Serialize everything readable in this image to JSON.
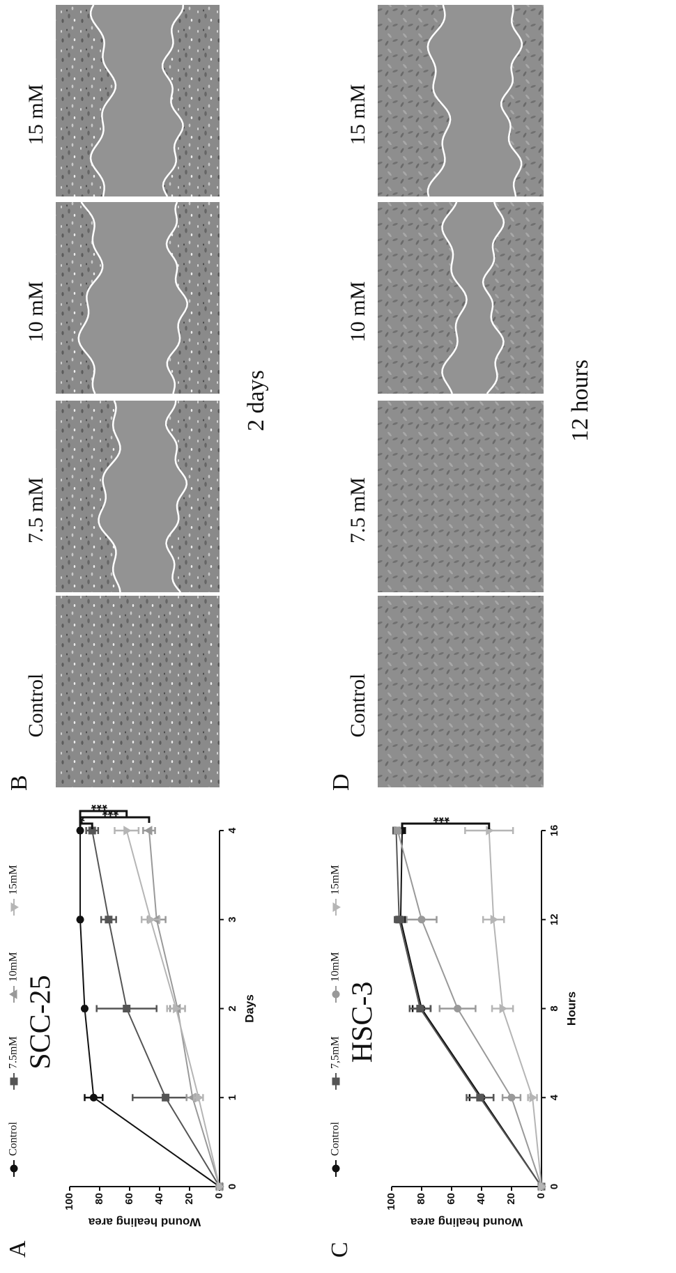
{
  "chart_data": [
    {
      "type": "line",
      "panel_label": "A",
      "title": "SCC-25",
      "x_label": "Days",
      "y_label": "Wound healing area",
      "x": [
        0,
        1,
        2,
        3,
        4
      ],
      "xlim": [
        0,
        4
      ],
      "xticks": [
        0,
        1,
        2,
        3,
        4
      ],
      "ylim": [
        0,
        100
      ],
      "yticks": [
        0,
        20,
        40,
        60,
        80,
        100
      ],
      "series": [
        {
          "name": "Control",
          "color": "#111111",
          "marker": "circle",
          "values": [
            0,
            84,
            90,
            93,
            93
          ],
          "errors": [
            0,
            6,
            1,
            1,
            1
          ]
        },
        {
          "name": "7.5mM",
          "color": "#555555",
          "marker": "square",
          "values": [
            0,
            36,
            62,
            74,
            85
          ],
          "errors": [
            0,
            22,
            20,
            5,
            4
          ]
        },
        {
          "name": "10mM",
          "color": "#999999",
          "marker": "triangle",
          "values": [
            0,
            18,
            28,
            42,
            47
          ],
          "errors": [
            0,
            4,
            5,
            6,
            4
          ]
        },
        {
          "name": "15mM",
          "color": "#b5b5b5",
          "marker": "triangle-down",
          "values": [
            0,
            14,
            29,
            46,
            62
          ],
          "errors": [
            0,
            3,
            6,
            6,
            8
          ]
        }
      ],
      "annotations": [
        "*",
        "***",
        "***"
      ]
    },
    {
      "type": "line",
      "panel_label": "C",
      "title": "HSC-3",
      "x_label": "Hours",
      "y_label": "Wound healing area",
      "x": [
        0,
        4,
        8,
        12,
        16
      ],
      "xlim": [
        0,
        16
      ],
      "xticks": [
        0,
        4,
        8,
        12,
        16
      ],
      "ylim": [
        0,
        100
      ],
      "yticks": [
        0,
        20,
        40,
        60,
        80,
        100
      ],
      "series": [
        {
          "name": "Control",
          "color": "#111111",
          "marker": "circle",
          "values": [
            0,
            40,
            80,
            94,
            93
          ],
          "errors": [
            0,
            8,
            6,
            3,
            2
          ]
        },
        {
          "name": "7,5mM",
          "color": "#555555",
          "marker": "square",
          "values": [
            0,
            41,
            81,
            95,
            97
          ],
          "errors": [
            0,
            9,
            7,
            3,
            1
          ]
        },
        {
          "name": "10mM",
          "color": "#999999",
          "marker": "circle",
          "values": [
            0,
            20,
            56,
            80,
            96
          ],
          "errors": [
            0,
            6,
            12,
            10,
            2
          ]
        },
        {
          "name": "15mM",
          "color": "#b5b5b5",
          "marker": "triangle-down",
          "values": [
            0,
            6,
            26,
            32,
            35
          ],
          "errors": [
            0,
            3,
            7,
            7,
            16
          ]
        }
      ],
      "annotations": [
        "***"
      ]
    }
  ],
  "image_panels": [
    {
      "label": "B",
      "conditions": [
        "Control",
        "7.5 mM",
        "10 mM",
        "15 mM"
      ],
      "time": "2 days"
    },
    {
      "label": "D",
      "conditions": [
        "Control",
        "7.5 mM",
        "10 mM",
        "15 mM"
      ],
      "time": "12 hours"
    }
  ]
}
